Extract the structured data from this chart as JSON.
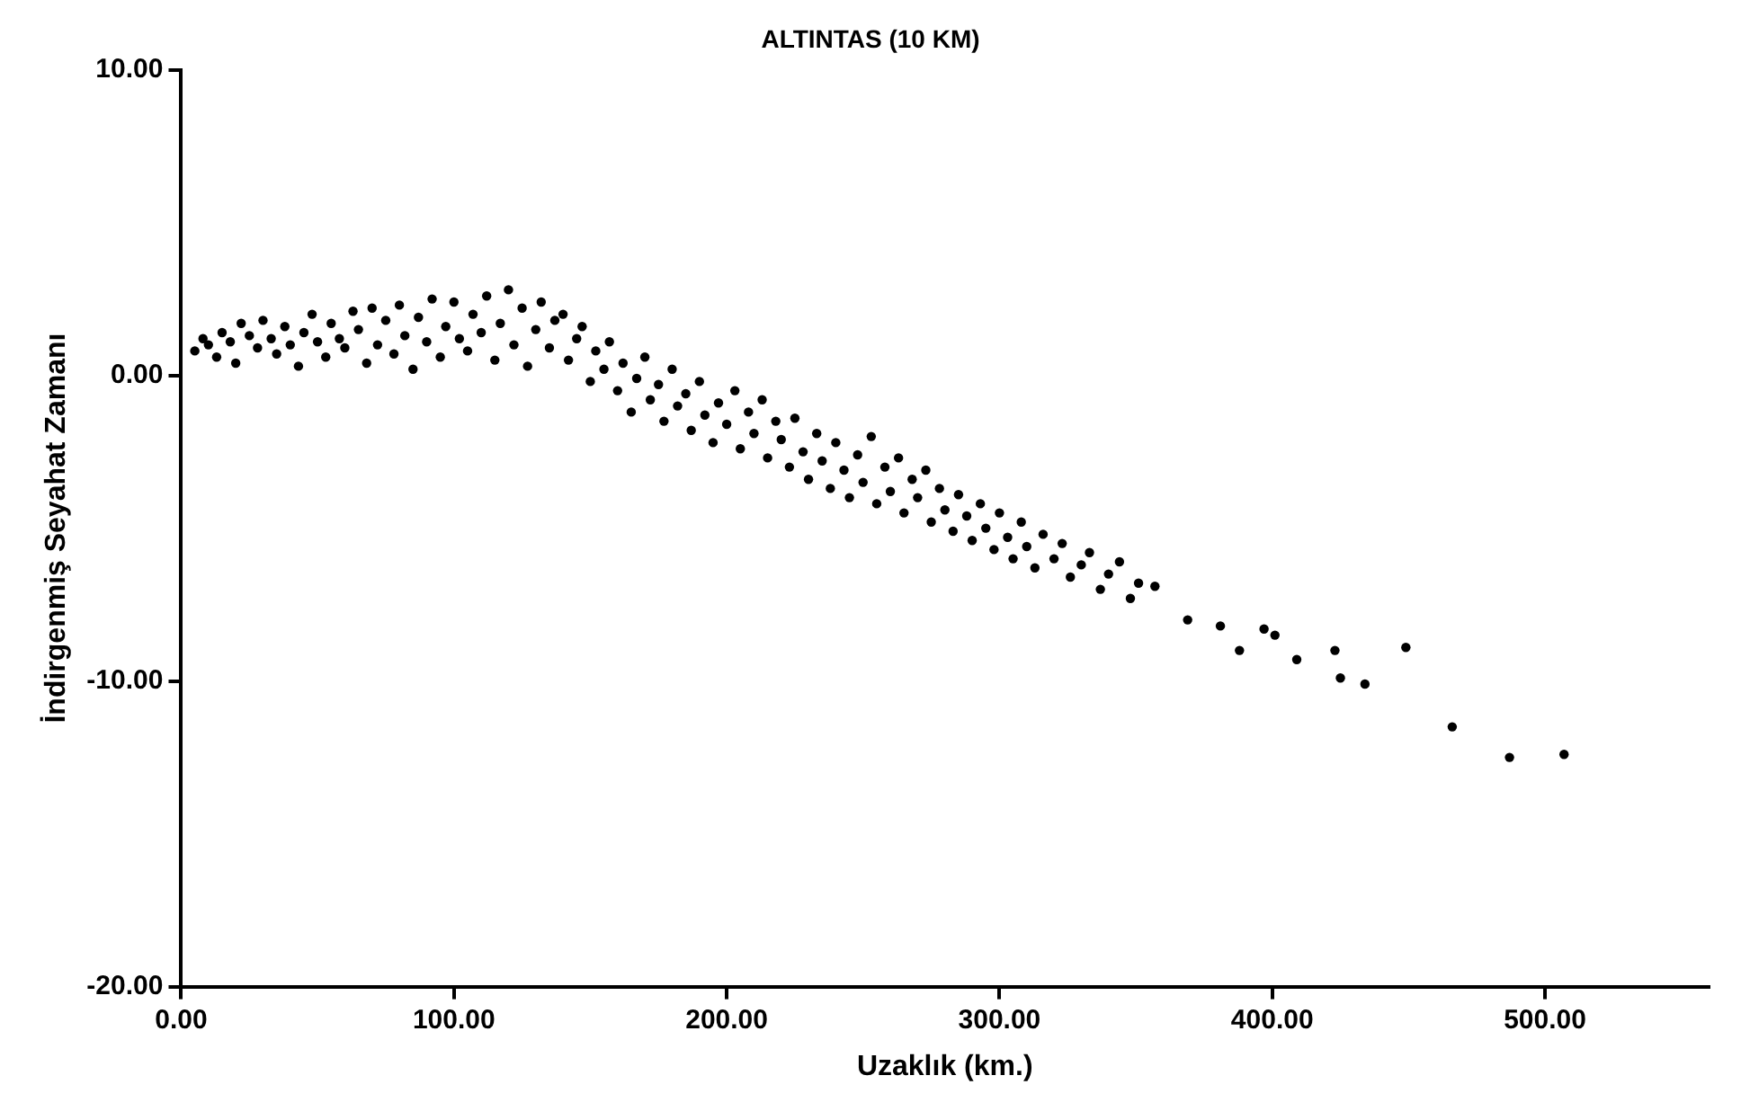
{
  "chart_data": {
    "type": "scatter",
    "title": "ALTINTAS (10 KM)",
    "xlabel": "Uzaklık (km.)",
    "ylabel": "İndirgenmiş Seyahat Zamanı",
    "xlim": [
      0,
      560
    ],
    "ylim": [
      -20,
      10
    ],
    "xticks": [
      {
        "value": 0,
        "label": "0.00"
      },
      {
        "value": 100,
        "label": "100.00"
      },
      {
        "value": 200,
        "label": "200.00"
      },
      {
        "value": 300,
        "label": "300.00"
      },
      {
        "value": 400,
        "label": "400.00"
      },
      {
        "value": 500,
        "label": "500.00"
      }
    ],
    "yticks": [
      {
        "value": -20,
        "label": "-20.00"
      },
      {
        "value": -10,
        "label": "-10.00"
      },
      {
        "value": 0,
        "label": "0.00"
      },
      {
        "value": 10,
        "label": "10.00"
      }
    ],
    "grid": false,
    "legend": false,
    "marker": "circle",
    "series": [
      {
        "color": "#000000",
        "x": [
          5,
          8,
          10,
          13,
          15,
          18,
          20,
          22,
          25,
          28,
          30,
          33,
          35,
          38,
          40,
          43,
          45,
          48,
          50,
          53,
          55,
          58,
          60,
          63,
          65,
          68,
          70,
          72,
          75,
          78,
          80,
          82,
          85,
          87,
          90,
          92,
          95,
          97,
          100,
          102,
          105,
          107,
          110,
          112,
          115,
          117,
          120,
          122,
          125,
          127,
          130,
          132,
          135,
          137,
          140,
          142,
          145,
          147,
          150,
          152,
          155,
          157,
          160,
          162,
          165,
          167,
          170,
          172,
          175,
          177,
          180,
          182,
          185,
          187,
          190,
          192,
          195,
          197,
          200,
          203,
          205,
          208,
          210,
          213,
          215,
          218,
          220,
          223,
          225,
          228,
          230,
          233,
          235,
          238,
          240,
          243,
          245,
          248,
          250,
          253,
          255,
          258,
          260,
          263,
          265,
          268,
          270,
          273,
          275,
          278,
          280,
          283,
          285,
          288,
          290,
          293,
          295,
          298,
          300,
          303,
          305,
          308,
          310,
          313,
          316,
          320,
          323,
          326,
          330,
          333,
          337,
          340,
          344,
          348,
          351,
          357,
          369,
          381,
          388,
          397,
          401,
          409,
          423,
          425,
          434,
          449,
          466,
          487,
          507
        ],
        "values": [
          0.8,
          1.2,
          1.0,
          0.6,
          1.4,
          1.1,
          0.4,
          1.7,
          1.3,
          0.9,
          1.8,
          1.2,
          0.7,
          1.6,
          1.0,
          0.3,
          1.4,
          2.0,
          1.1,
          0.6,
          1.7,
          1.2,
          0.9,
          2.1,
          1.5,
          0.4,
          2.2,
          1.0,
          1.8,
          0.7,
          2.3,
          1.3,
          0.2,
          1.9,
          1.1,
          2.5,
          0.6,
          1.6,
          2.4,
          1.2,
          0.8,
          2.0,
          1.4,
          2.6,
          0.5,
          1.7,
          2.8,
          1.0,
          2.2,
          0.3,
          1.5,
          2.4,
          0.9,
          1.8,
          2.0,
          0.5,
          1.2,
          1.6,
          -0.2,
          0.8,
          0.2,
          1.1,
          -0.5,
          0.4,
          -1.2,
          -0.1,
          0.6,
          -0.8,
          -0.3,
          -1.5,
          0.2,
          -1.0,
          -0.6,
          -1.8,
          -0.2,
          -1.3,
          -2.2,
          -0.9,
          -1.6,
          -0.5,
          -2.4,
          -1.2,
          -1.9,
          -0.8,
          -2.7,
          -1.5,
          -2.1,
          -3.0,
          -1.4,
          -2.5,
          -3.4,
          -1.9,
          -2.8,
          -3.7,
          -2.2,
          -3.1,
          -4.0,
          -2.6,
          -3.5,
          -2.0,
          -4.2,
          -3.0,
          -3.8,
          -2.7,
          -4.5,
          -3.4,
          -4.0,
          -3.1,
          -4.8,
          -3.7,
          -4.4,
          -5.1,
          -3.9,
          -4.6,
          -5.4,
          -4.2,
          -5.0,
          -5.7,
          -4.5,
          -5.3,
          -6.0,
          -4.8,
          -5.6,
          -6.3,
          -5.2,
          -6.0,
          -5.5,
          -6.6,
          -6.2,
          -5.8,
          -7.0,
          -6.5,
          -6.1,
          -7.3,
          -6.8,
          -6.9,
          -8.0,
          -8.2,
          -9.0,
          -8.3,
          -8.5,
          -9.3,
          -9.0,
          -9.9,
          -10.1,
          -8.9,
          -11.5,
          -12.5,
          -12.4
        ]
      }
    ]
  }
}
